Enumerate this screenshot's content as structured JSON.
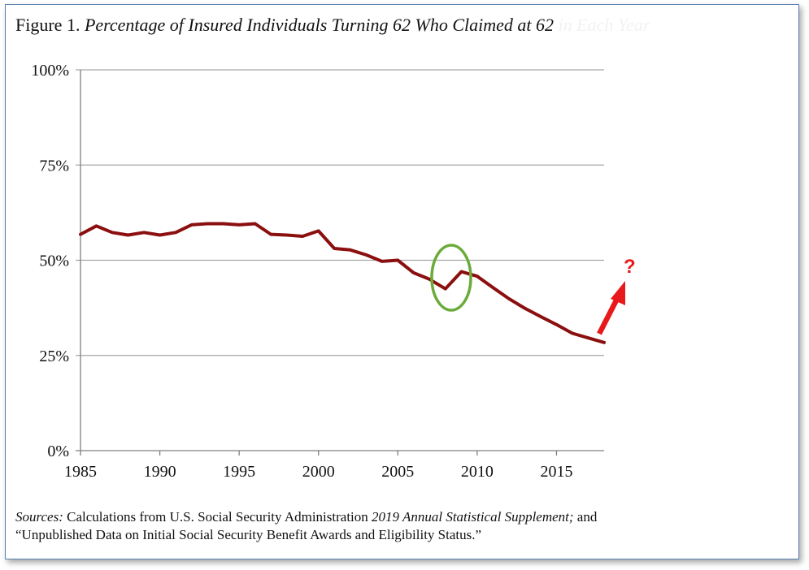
{
  "title": {
    "prefix": "Figure 1.",
    "main": "Percentage of Insured Individuals Turning 62 Who Claimed at 62",
    "faded_suffix": "in Each Year"
  },
  "sources": {
    "label": "Sources:",
    "text1": "Calculations from U.S. Social Security Administration",
    "publication": "2019 Annual Statistical Supplement;",
    "text2": "and",
    "line2": "“Unpublished Data on Initial Social Security Benefit Awards and Eligibility Status.”"
  },
  "annotation": {
    "question_mark": "?",
    "arrow_color": "#e8191b",
    "circle_color": "#6aab3a"
  },
  "chart_data": {
    "type": "line",
    "title": "Percentage of Insured Individuals Turning 62 Who Claimed at 62",
    "xlabel": "",
    "ylabel": "",
    "xlim": [
      1985,
      2018
    ],
    "ylim": [
      0,
      100
    ],
    "x_ticks": [
      1985,
      1990,
      1995,
      2000,
      2005,
      2010,
      2015
    ],
    "y_ticks": [
      0,
      25,
      50,
      75,
      100
    ],
    "y_tick_labels": [
      "0%",
      "25%",
      "50%",
      "75%",
      "100%"
    ],
    "grid": "horizontal",
    "line_color": "#8b0f0f",
    "series": [
      {
        "x": [
          1985,
          1986,
          1987,
          1988,
          1989,
          1990,
          1991,
          1992,
          1993,
          1994,
          1995,
          1996,
          1997,
          1998,
          1999,
          2000,
          2001,
          2002,
          2003,
          2004,
          2005,
          2006,
          2007,
          2008,
          2009,
          2010,
          2011,
          2012,
          2013,
          2014,
          2015,
          2016,
          2017,
          2018
        ],
        "values": [
          56.8,
          59.0,
          57.3,
          56.6,
          57.3,
          56.6,
          57.3,
          59.3,
          59.6,
          59.6,
          59.3,
          59.6,
          56.8,
          56.6,
          56.3,
          57.7,
          53.1,
          52.7,
          51.4,
          49.7,
          50.0,
          46.7,
          45.0,
          42.5,
          47.0,
          45.8,
          42.8,
          39.9,
          37.4,
          35.2,
          33.1,
          30.8,
          29.6,
          28.4
        ]
      }
    ]
  }
}
